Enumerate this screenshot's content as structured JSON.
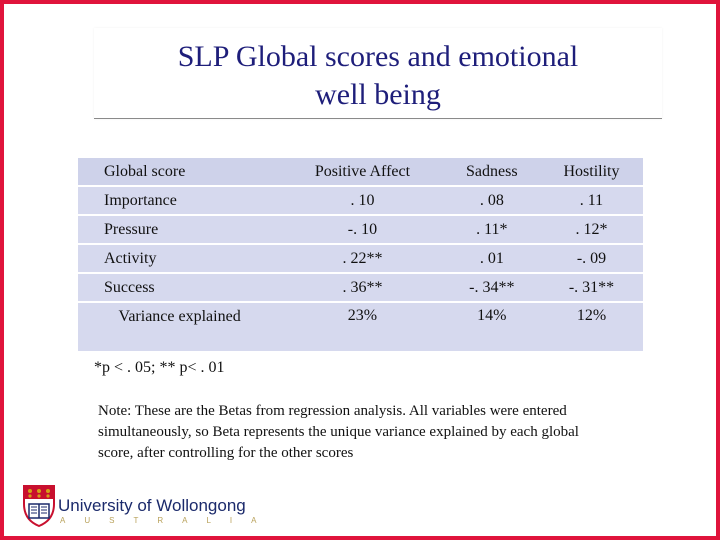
{
  "title": {
    "line1": "SLP Global scores and emotional",
    "line2": "well being"
  },
  "table": {
    "headers": [
      "Global score",
      "Positive Affect",
      "Sadness",
      "Hostility"
    ],
    "rows": [
      [
        "Importance",
        ". 10",
        ". 08",
        ". 11"
      ],
      [
        "Pressure",
        "-. 10",
        ". 11*",
        ". 12*"
      ],
      [
        "Activity",
        ". 22**",
        ". 01",
        "-. 09"
      ],
      [
        "Success",
        ". 36**",
        "-. 34**",
        "-. 31**"
      ],
      [
        "Variance explained",
        "23%",
        "14%",
        "12%"
      ]
    ]
  },
  "footnote": "*p < . 05; ** p< . 01",
  "note": "Note: These are the Betas from regression analysis. All variables were entered simultaneously, so Beta represents the unique variance explained by each global score, after controlling for the other  scores",
  "logo": {
    "name": "University of Wollongong",
    "sub": "AUSTRALIA"
  },
  "colors": {
    "frame": "#e0143c",
    "title": "#1e1e7a",
    "table_fill": "#d6d9ee",
    "logo_red": "#c8102e",
    "logo_gold": "#d4a017"
  }
}
